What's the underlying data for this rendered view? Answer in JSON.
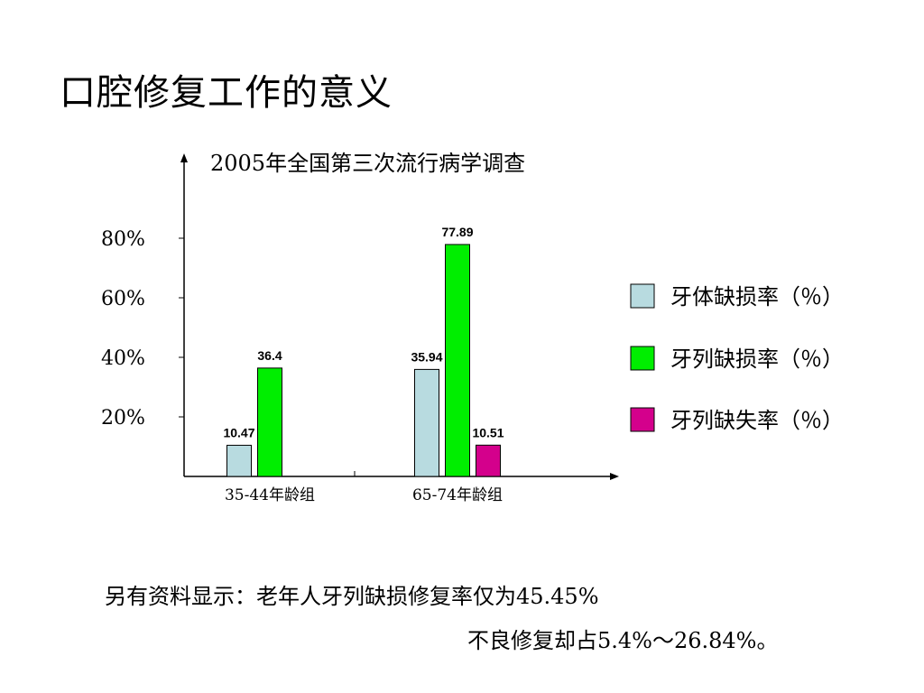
{
  "slide": {
    "title": "口腔修复工作的意义",
    "notes": [
      "另有资料显示：老年人牙列缺损修复率仅为45.45%",
      "不良修复却占5.4%～26.84%。"
    ]
  },
  "chart_data": {
    "type": "bar",
    "title": "2005年全国第三次流行病学调查",
    "xlabel": "",
    "ylabel": "",
    "categories": [
      "35-44年龄组",
      "65-74年龄组"
    ],
    "series": [
      {
        "name": "牙体缺损率（％）",
        "color": "#b8dbe0",
        "values": [
          10.47,
          35.94
        ]
      },
      {
        "name": "牙列缺损率（％）",
        "color": "#00ee00",
        "values": [
          36.4,
          77.89
        ]
      },
      {
        "name": "牙列缺失率（％）",
        "color": "#d4008c",
        "values": [
          null,
          10.51
        ]
      }
    ],
    "yticks": [
      {
        "value": 20,
        "label": "20%"
      },
      {
        "value": 40,
        "label": "40%"
      },
      {
        "value": 60,
        "label": "60%"
      },
      {
        "value": 80,
        "label": "80%"
      }
    ],
    "ylim": [
      0,
      100
    ],
    "grid": false,
    "legend_position": "right"
  }
}
